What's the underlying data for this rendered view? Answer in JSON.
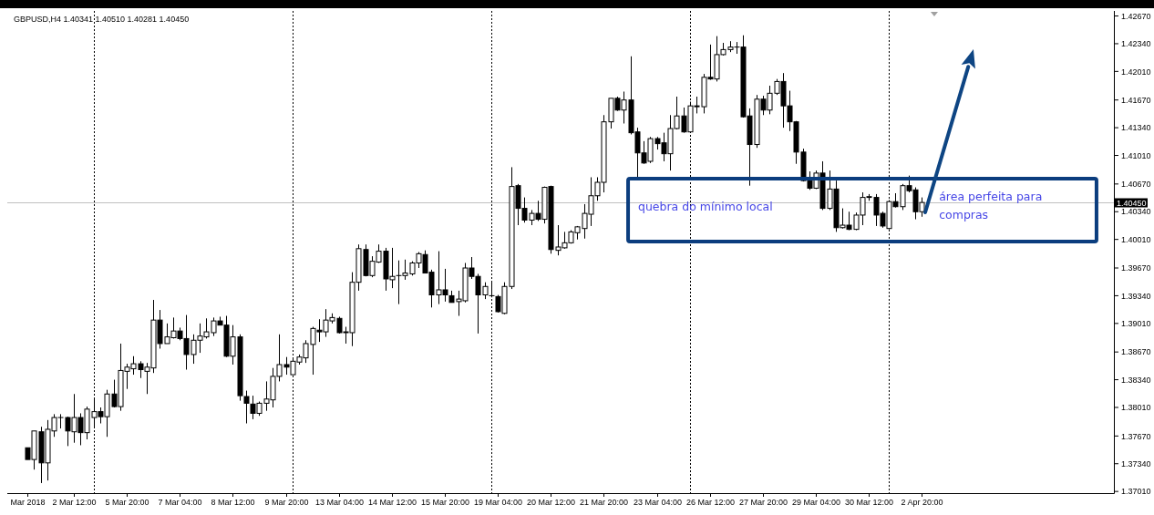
{
  "chart_data": {
    "type": "candlestick",
    "title": "GBPUSD,H4 1.40341 1.40510 1.40281 1.40450",
    "categories": [
      "Mar 2018",
      null,
      null,
      null,
      null,
      null,
      null,
      "2 Mar 12:00",
      null,
      null,
      null,
      null,
      null,
      null,
      null,
      "5 Mar 20:00",
      null,
      null,
      null,
      null,
      null,
      null,
      null,
      "7 Mar 04:00",
      null,
      null,
      null,
      null,
      null,
      null,
      null,
      "8 Mar 12:00",
      null,
      null,
      null,
      null,
      null,
      null,
      null,
      "9 Mar 20:00",
      null,
      null,
      null,
      null,
      null,
      null,
      null,
      "13 Mar 04:00",
      null,
      null,
      null,
      null,
      null,
      null,
      null,
      "14 Mar 12:00",
      null,
      null,
      null,
      null,
      null,
      null,
      null,
      "15 Mar 20:00",
      null,
      null,
      null,
      null,
      null,
      null,
      null,
      "19 Mar 04:00",
      null,
      null,
      null,
      null,
      null,
      null,
      null,
      "20 Mar 12:00",
      null,
      null,
      null,
      null,
      null,
      null,
      null,
      "21 Mar 20:00",
      null,
      null,
      null,
      null,
      null,
      null,
      null,
      "23 Mar 04:00",
      null,
      null,
      null,
      null,
      null,
      null,
      null,
      "26 Mar 12:00",
      null,
      null,
      null,
      null,
      null,
      null,
      null,
      "27 Mar 20:00",
      null,
      null,
      null,
      null,
      null,
      null,
      null,
      "29 Mar 04:00",
      null,
      null,
      null,
      null,
      null,
      null,
      null,
      "30 Mar 12:00",
      null,
      null,
      null,
      null,
      null,
      null,
      null,
      "2 Apr 20:00",
      null,
      null,
      null,
      null,
      null,
      null,
      null,
      null,
      null,
      null,
      null,
      null,
      null,
      null,
      null,
      null,
      null,
      null,
      null,
      null,
      null,
      null,
      null,
      null,
      null,
      null,
      null,
      null
    ],
    "ohlc": [
      [
        1.3753,
        1.3753,
        1.3739,
        1.3739
      ],
      [
        1.3739,
        1.3773,
        1.3727,
        1.3773
      ],
      [
        1.3772,
        1.3778,
        1.3711,
        1.3735
      ],
      [
        1.3735,
        1.3786,
        1.3714,
        1.3775
      ],
      [
        1.3773,
        1.3793,
        1.3766,
        1.3789
      ],
      [
        1.3789,
        1.3793,
        1.3776,
        1.3789
      ],
      [
        1.3789,
        1.379,
        1.3755,
        1.3773
      ],
      [
        1.3772,
        1.3817,
        1.3759,
        1.3789
      ],
      [
        1.3789,
        1.3794,
        1.3756,
        1.3771
      ],
      [
        1.3771,
        1.3802,
        1.3763,
        1.3799
      ],
      [
        1.3789,
        1.3812,
        1.3778,
        1.3796
      ],
      [
        1.3796,
        1.3801,
        1.3782,
        1.379
      ],
      [
        1.379,
        1.3822,
        1.3766,
        1.3817
      ],
      [
        1.3817,
        1.3834,
        1.3801,
        1.3802
      ],
      [
        1.3802,
        1.3877,
        1.3797,
        1.3845
      ],
      [
        1.3844,
        1.3853,
        1.3823,
        1.3849
      ],
      [
        1.3847,
        1.3862,
        1.384,
        1.3853
      ],
      [
        1.3853,
        1.3856,
        1.3836,
        1.3846
      ],
      [
        1.3844,
        1.3854,
        1.3817,
        1.3849
      ],
      [
        1.3848,
        1.3929,
        1.3842,
        1.3905
      ],
      [
        1.3905,
        1.3917,
        1.3871,
        1.3877
      ],
      [
        1.3877,
        1.3901,
        1.3877,
        1.3885
      ],
      [
        1.3884,
        1.3908,
        1.3883,
        1.3892
      ],
      [
        1.3892,
        1.3896,
        1.3881,
        1.3883
      ],
      [
        1.3883,
        1.3911,
        1.3846,
        1.3864
      ],
      [
        1.3864,
        1.3888,
        1.3853,
        1.3881
      ],
      [
        1.3881,
        1.3901,
        1.3866,
        1.3886
      ],
      [
        1.3885,
        1.3907,
        1.3883,
        1.3891
      ],
      [
        1.389,
        1.3908,
        1.3886,
        1.3904
      ],
      [
        1.3904,
        1.3909,
        1.3899,
        1.3899
      ],
      [
        1.3899,
        1.391,
        1.3861,
        1.3862
      ],
      [
        1.3862,
        1.3899,
        1.3852,
        1.3885
      ],
      [
        1.3885,
        1.3888,
        1.3809,
        1.3815
      ],
      [
        1.3814,
        1.3821,
        1.3782,
        1.3806
      ],
      [
        1.3805,
        1.3815,
        1.3787,
        1.3794
      ],
      [
        1.3794,
        1.3808,
        1.3791,
        1.3806
      ],
      [
        1.3806,
        1.3832,
        1.3797,
        1.3811
      ],
      [
        1.381,
        1.3848,
        1.3801,
        1.3838
      ],
      [
        1.3838,
        1.3888,
        1.3832,
        1.3852
      ],
      [
        1.3852,
        1.3861,
        1.384,
        1.3849
      ],
      [
        1.384,
        1.386,
        1.384,
        1.3856
      ],
      [
        1.3855,
        1.3864,
        1.3852,
        1.3861
      ],
      [
        1.386,
        1.3881,
        1.3854,
        1.3877
      ],
      [
        1.3876,
        1.3897,
        1.384,
        1.3895
      ],
      [
        1.3893,
        1.3906,
        1.3879,
        1.3891
      ],
      [
        1.3891,
        1.3918,
        1.3885,
        1.3905
      ],
      [
        1.3904,
        1.3913,
        1.3901,
        1.3908
      ],
      [
        1.3907,
        1.3909,
        1.3889,
        1.389
      ],
      [
        1.3891,
        1.3897,
        1.3877,
        1.389
      ],
      [
        1.389,
        1.3962,
        1.3874,
        1.395
      ],
      [
        1.395,
        1.3995,
        1.394,
        1.399
      ],
      [
        1.3989,
        1.3995,
        1.3957,
        1.3958
      ],
      [
        1.3958,
        1.3981,
        1.3956,
        1.3975
      ],
      [
        1.3974,
        1.3995,
        1.3973,
        1.3987
      ],
      [
        1.3987,
        1.3991,
        1.394,
        1.3954
      ],
      [
        1.3953,
        1.3991,
        1.3943,
        1.3957
      ],
      [
        1.3958,
        1.3976,
        1.3924,
        1.3958
      ],
      [
        1.3958,
        1.3977,
        1.3953,
        1.3961
      ],
      [
        1.396,
        1.3975,
        1.3958,
        1.3973
      ],
      [
        1.3973,
        1.3986,
        1.3967,
        1.3984
      ],
      [
        1.3983,
        1.3988,
        1.3961,
        1.3961
      ],
      [
        1.3962,
        1.3965,
        1.392,
        1.3935
      ],
      [
        1.3935,
        1.3987,
        1.3924,
        1.3941
      ],
      [
        1.3941,
        1.3966,
        1.3927,
        1.3935
      ],
      [
        1.3934,
        1.394,
        1.3926,
        1.3926
      ],
      [
        1.3927,
        1.394,
        1.391,
        1.393
      ],
      [
        1.3928,
        1.3973,
        1.3926,
        1.3967
      ],
      [
        1.3967,
        1.398,
        1.3954,
        1.3957
      ],
      [
        1.3957,
        1.396,
        1.3889,
        1.3935
      ],
      [
        1.3935,
        1.395,
        1.393,
        1.3945
      ],
      [
        1.3934,
        1.395,
        1.3932,
        1.3934
      ],
      [
        1.3933,
        1.3935,
        1.3914,
        1.3915
      ],
      [
        1.3913,
        1.395,
        1.3912,
        1.3945
      ],
      [
        1.3945,
        1.4087,
        1.3942,
        1.4064
      ],
      [
        1.4065,
        1.4067,
        1.4018,
        1.4038
      ],
      [
        1.4038,
        1.4051,
        1.4021,
        1.4024
      ],
      [
        1.4024,
        1.4036,
        1.4018,
        1.4032
      ],
      [
        1.4032,
        1.4047,
        1.4023,
        1.4025
      ],
      [
        1.4025,
        1.4064,
        1.402,
        1.4063
      ],
      [
        1.4064,
        1.4065,
        1.3984,
        1.3989
      ],
      [
        1.3988,
        1.4018,
        1.3982,
        1.3992
      ],
      [
        1.3991,
        1.401,
        1.399,
        1.3997
      ],
      [
        1.3997,
        1.4012,
        1.3996,
        1.401
      ],
      [
        1.4009,
        1.4017,
        1.4001,
        1.4016
      ],
      [
        1.4014,
        1.4043,
        1.4002,
        1.4032
      ],
      [
        1.4031,
        1.4075,
        1.4017,
        1.4053
      ],
      [
        1.4053,
        1.4075,
        1.4047,
        1.4069
      ],
      [
        1.4069,
        1.4149,
        1.4057,
        1.4141
      ],
      [
        1.4141,
        1.4169,
        1.4133,
        1.4169
      ],
      [
        1.4169,
        1.4171,
        1.4154,
        1.4155
      ],
      [
        1.4155,
        1.4177,
        1.4139,
        1.4167
      ],
      [
        1.4167,
        1.4219,
        1.4126,
        1.4128
      ],
      [
        1.4129,
        1.4134,
        1.4073,
        1.4104
      ],
      [
        1.4104,
        1.4118,
        1.4091,
        1.4092
      ],
      [
        1.4094,
        1.4123,
        1.4092,
        1.4121
      ],
      [
        1.4121,
        1.4123,
        1.4108,
        1.4115
      ],
      [
        1.4116,
        1.4128,
        1.4094,
        1.4103
      ],
      [
        1.4103,
        1.4149,
        1.4083,
        1.4133
      ],
      [
        1.4133,
        1.4171,
        1.4132,
        1.4148
      ],
      [
        1.4148,
        1.4158,
        1.4128,
        1.4129
      ],
      [
        1.4129,
        1.4165,
        1.4128,
        1.416
      ],
      [
        1.416,
        1.4171,
        1.4151,
        1.4159
      ],
      [
        1.4159,
        1.4198,
        1.4151,
        1.4194
      ],
      [
        1.4194,
        1.4233,
        1.4191,
        1.4192
      ],
      [
        1.4192,
        1.4243,
        1.4189,
        1.4221
      ],
      [
        1.4221,
        1.4235,
        1.422,
        1.4227
      ],
      [
        1.4227,
        1.4237,
        1.4224,
        1.423
      ],
      [
        1.423,
        1.4236,
        1.4222,
        1.423
      ],
      [
        1.423,
        1.4244,
        1.4146,
        1.4147
      ],
      [
        1.4148,
        1.4157,
        1.4065,
        1.4114
      ],
      [
        1.4114,
        1.4173,
        1.411,
        1.4168
      ],
      [
        1.4168,
        1.4172,
        1.4149,
        1.4155
      ],
      [
        1.4155,
        1.4184,
        1.415,
        1.4175
      ],
      [
        1.4175,
        1.4192,
        1.4173,
        1.4189
      ],
      [
        1.4189,
        1.4199,
        1.4134,
        1.416
      ],
      [
        1.416,
        1.4178,
        1.413,
        1.4141
      ],
      [
        1.4141,
        1.4142,
        1.4091,
        1.4105
      ],
      [
        1.4105,
        1.4109,
        1.407,
        1.4071
      ],
      [
        1.4071,
        1.4082,
        1.406,
        1.4062
      ],
      [
        1.4062,
        1.4083,
        1.4061,
        1.408
      ],
      [
        1.408,
        1.4094,
        1.4036,
        1.4038
      ],
      [
        1.4038,
        1.4083,
        1.4036,
        1.4061
      ],
      [
        1.4061,
        1.4071,
        1.401,
        1.4015
      ],
      [
        1.4015,
        1.4038,
        1.4014,
        1.4018
      ],
      [
        1.4018,
        1.4034,
        1.4012,
        1.4013
      ],
      [
        1.4013,
        1.4033,
        1.4012,
        1.403
      ],
      [
        1.403,
        1.4057,
        1.4018,
        1.4051
      ],
      [
        1.4051,
        1.4055,
        1.4047,
        1.4052
      ],
      [
        1.4051,
        1.4055,
        1.4017,
        1.403
      ],
      [
        1.4032,
        1.4034,
        1.4015,
        1.4017
      ],
      [
        1.4014,
        1.4048,
        1.4013,
        1.4046
      ],
      [
        1.4046,
        1.4056,
        1.4039,
        1.404
      ],
      [
        1.404,
        1.4067,
        1.4036,
        1.4065
      ],
      [
        1.4065,
        1.4077,
        1.4057,
        1.4059
      ],
      [
        1.406,
        1.4063,
        1.4025,
        1.4034
      ],
      [
        1.4034,
        1.4051,
        1.4028,
        1.4045
      ],
      null,
      null,
      null,
      null,
      null,
      null,
      null,
      null,
      null,
      null,
      null,
      null,
      null,
      null,
      null,
      null,
      null,
      null,
      null,
      null,
      null,
      null,
      null,
      null,
      null,
      null,
      null,
      null
    ],
    "color": "#000000",
    "ylim": [
      1.3699,
      1.4273
    ],
    "yticks": [
      {
        "value": 1.4267,
        "label": "1.42670"
      },
      {
        "value": 1.4234,
        "label": "1.42340"
      },
      {
        "value": 1.4201,
        "label": "1.42010"
      },
      {
        "value": 1.4167,
        "label": "1.41670"
      },
      {
        "value": 1.4134,
        "label": "1.41340"
      },
      {
        "value": 1.4101,
        "label": "1.41010"
      },
      {
        "value": 1.4067,
        "label": "1.40670"
      },
      {
        "value": 1.4034,
        "label": "1.40340"
      },
      {
        "value": 1.4001,
        "label": "1.40010"
      },
      {
        "value": 1.3967,
        "label": "1.39670"
      },
      {
        "value": 1.3934,
        "label": "1.39340"
      },
      {
        "value": 1.3901,
        "label": "1.39010"
      },
      {
        "value": 1.3867,
        "label": "1.38670"
      },
      {
        "value": 1.3834,
        "label": "1.38340"
      },
      {
        "value": 1.3801,
        "label": "1.38010"
      },
      {
        "value": 1.3767,
        "label": "1.37670"
      },
      {
        "value": 1.3734,
        "label": "1.37340"
      },
      {
        "value": 1.3701,
        "label": "1.37010"
      }
    ],
    "ref_lines": [
      {
        "axis": "y",
        "value": 1.4045,
        "label": "1.40450",
        "color": "#c0c0c0"
      }
    ],
    "annotations": [
      "quebra do mínimo local",
      "área perfeita para compras"
    ]
  }
}
